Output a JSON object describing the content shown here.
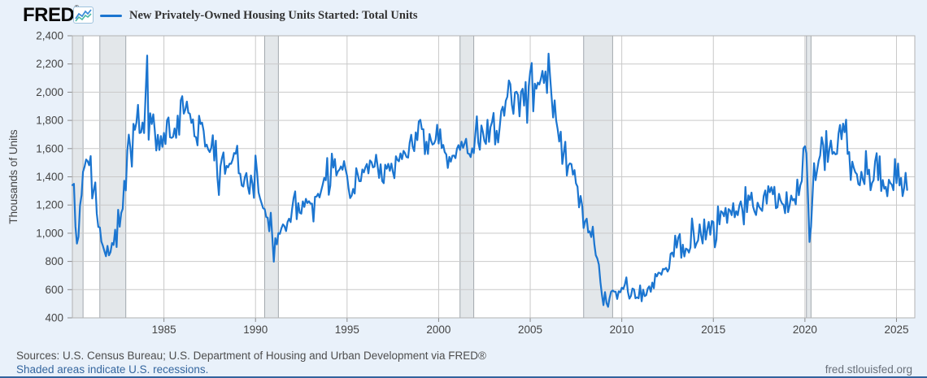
{
  "header": {
    "logo_text": "FRED",
    "registered_mark": "®",
    "series_title": "New Privately-Owned Housing Units Started: Total Units"
  },
  "footer": {
    "sources_text": "Sources: U.S. Census Bureau; U.S. Department of Housing and Urban Development via FRED®",
    "recession_note": "Shaded areas indicate U.S. recessions.",
    "site_link": "fred.stlouisfed.org"
  },
  "colors": {
    "page_background": "#e9f1fa",
    "plot_background": "#ffffff",
    "line": "#1b75d0",
    "gridline": "#c9c9c9",
    "plot_border": "#b2b2b2",
    "recession_fill": "#e3e7ea",
    "recession_edge": "#a2a8ae",
    "tick_mark": "#8a8a8a",
    "axis_text": "#444444"
  },
  "y_axis": {
    "title": "Thousands of Units",
    "tick_values": [
      2400,
      2200,
      2000,
      1800,
      1600,
      1400,
      1200,
      1000,
      800,
      600,
      400
    ],
    "tick_labels": [
      "2,400",
      "2,200",
      "2,000",
      "1,800",
      "1,600",
      "1,400",
      "1,200",
      "1,000",
      "800",
      "600",
      "400"
    ]
  },
  "x_axis": {
    "tick_values": [
      1985,
      1990,
      1995,
      2000,
      2005,
      2010,
      2015,
      2020,
      2025
    ],
    "tick_labels": [
      "1985",
      "1990",
      "1995",
      "2000",
      "2005",
      "2010",
      "2015",
      "2020",
      "2025"
    ]
  },
  "chart_data": {
    "type": "line",
    "title": "New Privately-Owned Housing Units Started: Total Units",
    "ylabel": "Thousands of Units",
    "legend_position": "top-left header",
    "grid": true,
    "frequency": "monthly",
    "x_start": 1980.0,
    "xlim": [
      1980.0,
      2026.0
    ],
    "ylim": [
      400,
      2400
    ],
    "recessions": [
      [
        1980.0,
        1980.583
      ],
      [
        1981.5,
        1982.917
      ],
      [
        1990.5,
        1991.25
      ],
      [
        2001.167,
        2001.917
      ],
      [
        2007.917,
        2009.5
      ],
      [
        2020.083,
        2020.333
      ]
    ],
    "series": [
      {
        "name": "New Privately-Owned Housing Units Started: Total Units",
        "units": "Thousands of Units",
        "values": [
          1341,
          1350,
          1047,
          927,
          974,
          1196,
          1269,
          1436,
          1471,
          1523,
          1510,
          1482,
          1547,
          1246,
          1306,
          1360,
          1140,
          1045,
          1041,
          940,
          911,
          873,
          837,
          910,
          843,
          866,
          931,
          917,
          1025,
          902,
          1166,
          1046,
          1144,
          1173,
          1372,
          1303,
          1586,
          1699,
          1606,
          1472,
          1776,
          1733,
          1785,
          1910,
          1710,
          1715,
          1785,
          1710,
          1988,
          2260,
          1663,
          1851,
          1774,
          1843,
          1732,
          1586,
          1698,
          1590,
          1689,
          1612,
          1711,
          1632,
          1800,
          1821,
          1680,
          1676,
          1684,
          1743,
          1676,
          1834,
          1698,
          1942,
          1972,
          1848,
          1876,
          1933,
          1854,
          1847,
          1782,
          1807,
          1687,
          1681,
          1623,
          1833,
          1774,
          1784,
          1726,
          1614,
          1628,
          1594,
          1575,
          1605,
          1695,
          1515,
          1656,
          1400,
          1271,
          1473,
          1532,
          1573,
          1421,
          1478,
          1467,
          1493,
          1492,
          1522,
          1569,
          1563,
          1621,
          1425,
          1422,
          1339,
          1331,
          1397,
          1427,
          1332,
          1279,
          1410,
          1351,
          1251,
          1551,
          1437,
          1289,
          1248,
          1212,
          1177,
          1171,
          1115,
          1110,
          1014,
          1145,
          969,
          798,
          965,
          921,
          1001,
          996,
          1036,
          1063,
          1049,
          1015,
          1079,
          1103,
          1079,
          1176,
          1250,
          1297,
          1099,
          1214,
          1145,
          1139,
          1226,
          1186,
          1244,
          1214,
          1227,
          1210,
          1210,
          1083,
          1258,
          1260,
          1280,
          1254,
          1300,
          1343,
          1392,
          1376,
          1533,
          1272,
          1337,
          1564,
          1465,
          1526,
          1409,
          1439,
          1450,
          1474,
          1450,
          1511,
          1455,
          1407,
          1316,
          1249,
          1267,
          1314,
          1281,
          1461,
          1416,
          1369,
          1369,
          1452,
          1431,
          1467,
          1491,
          1424,
          1516,
          1504,
          1467,
          1472,
          1557,
          1475,
          1392,
          1489,
          1370,
          1355,
          1486,
          1457,
          1492,
          1442,
          1494,
          1437,
          1390,
          1546,
          1520,
          1510,
          1566,
          1525,
          1584,
          1567,
          1540,
          1536,
          1641,
          1698,
          1614,
          1582,
          1715,
          1660,
          1792,
          1804,
          1738,
          1737,
          1561,
          1649,
          1562,
          1704,
          1657,
          1628,
          1636,
          1663,
          1769,
          1636,
          1737,
          1604,
          1626,
          1575,
          1559,
          1463,
          1541,
          1507,
          1549,
          1551,
          1532,
          1600,
          1625,
          1590,
          1649,
          1605,
          1636,
          1670,
          1567,
          1562,
          1540,
          1602,
          1568,
          1698,
          1829,
          1642,
          1592,
          1764,
          1717,
          1655,
          1633,
          1804,
          1648,
          1753,
          1788,
          1853,
          1629,
          1726,
          1643,
          1751,
          1867,
          1897,
          1833,
          1939,
          1967,
          2083,
          2057,
          1911,
          1846,
          1998,
          2003,
          1981,
          1828,
          2002,
          2024,
          1905,
          2072,
          1782,
          2042,
          2144,
          2207,
          1864,
          2061,
          2025,
          2068,
          2054,
          2095,
          2151,
          2065,
          2147,
          1994,
          2273,
          2119,
          1969,
          1821,
          1942,
          1802,
          1737,
          1650,
          1720,
          1491,
          1570,
          1649,
          1409,
          1480,
          1495,
          1490,
          1415,
          1448,
          1354,
          1330,
          1183,
          1264,
          1197,
          1037,
          1084,
          1103,
          1005,
          1013,
          973,
          1046,
          923,
          844,
          820,
          777,
          652,
          560,
          490,
          582,
          505,
          478,
          540,
          585,
          594,
          586,
          585,
          534,
          588,
          581,
          614,
          604,
          636,
          687,
          583,
          536,
          555,
          608,
          601,
          539,
          545,
          539,
          630,
          517,
          600,
          554,
          561,
          608,
          623,
          585,
          650,
          610,
          711,
          694,
          720,
          718,
          706,
          747,
          744,
          754,
          728,
          749,
          854,
          863,
          834,
          983,
          898,
          969,
          994,
          826,
          919,
          835,
          891,
          885,
          863,
          899,
          1105,
          1010,
          897,
          928,
          950,
          1063,
          984,
          927,
          1098,
          955,
          1028,
          1080,
          989,
          1087,
          1080,
          900,
          954,
          1190,
          1063,
          1157,
          1147,
          1120,
          1180,
          1073,
          1171,
          1160,
          1128,
          1213,
          1113,
          1157,
          1128,
          1195,
          1226,
          1168,
          1062,
          1328,
          1149,
          1268,
          1236,
          1288,
          1189,
          1154,
          1129,
          1217,
          1188,
          1172,
          1158,
          1265,
          1303,
          1210,
          1334,
          1290,
          1327,
          1276,
          1329,
          1177,
          1184,
          1279,
          1236,
          1211,
          1202,
          1142,
          1291,
          1149,
          1199,
          1267,
          1233,
          1243,
          1204,
          1381,
          1270,
          1340,
          1371,
          1601,
          1617,
          1567,
          1269,
          938,
          1046,
          1273,
          1497,
          1376,
          1448,
          1514,
          1551,
          1680,
          1625,
          1447,
          1725,
          1505,
          1594,
          1657,
          1562,
          1576,
          1559,
          1563,
          1706,
          1768,
          1666,
          1777,
          1716,
          1805,
          1562,
          1575,
          1377,
          1508,
          1465,
          1432,
          1419,
          1348,
          1340,
          1436,
          1380,
          1348,
          1583,
          1418,
          1451,
          1305,
          1356,
          1376,
          1510,
          1568,
          1376,
          1546,
          1299,
          1377,
          1315,
          1329,
          1262,
          1379,
          1355,
          1344,
          1305,
          1526,
          1355,
          1494,
          1339,
          1392,
          1263,
          1321,
          1428,
          1307
        ]
      }
    ]
  }
}
